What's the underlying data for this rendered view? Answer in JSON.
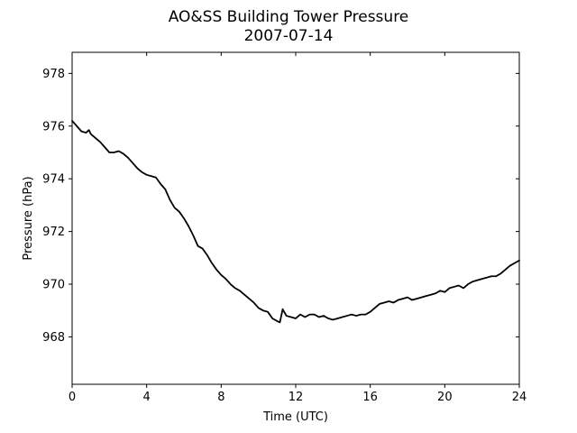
{
  "chart_data": {
    "type": "line",
    "title": "AO&SS Building Tower Pressure",
    "subtitle": "2007-07-14",
    "xlabel": "Time (UTC)",
    "ylabel": "Pressure (hPa)",
    "xlim": [
      0,
      24
    ],
    "ylim": [
      966.2,
      978.8
    ],
    "xticks": [
      0,
      4,
      8,
      12,
      16,
      20,
      24
    ],
    "yticks": [
      968,
      970,
      972,
      974,
      976,
      978
    ],
    "grid": false,
    "line_color": "#000000",
    "series": [
      {
        "x": [
          0,
          0.25,
          0.5,
          0.75,
          0.9,
          1,
          1.25,
          1.5,
          1.75,
          2,
          2.25,
          2.5,
          2.75,
          3,
          3.25,
          3.5,
          3.75,
          4,
          4.25,
          4.5,
          4.75,
          5,
          5.25,
          5.5,
          5.75,
          6,
          6.25,
          6.5,
          6.75,
          7,
          7.25,
          7.5,
          7.75,
          8,
          8.25,
          8.5,
          8.75,
          9,
          9.25,
          9.5,
          9.75,
          10,
          10.25,
          10.5,
          10.75,
          11,
          11.15,
          11.3,
          11.5,
          11.75,
          12,
          12.25,
          12.5,
          12.75,
          13,
          13.25,
          13.5,
          13.75,
          14,
          14.25,
          14.5,
          14.75,
          15,
          15.25,
          15.5,
          15.75,
          16,
          16.25,
          16.5,
          16.75,
          17,
          17.25,
          17.5,
          17.75,
          18,
          18.25,
          18.5,
          18.75,
          19,
          19.25,
          19.5,
          19.75,
          20,
          20.25,
          20.5,
          20.75,
          21,
          21.25,
          21.5,
          21.75,
          22,
          22.25,
          22.5,
          22.75,
          23,
          23.25,
          23.5,
          23.75,
          24
        ],
        "y": [
          976.2,
          976.0,
          975.8,
          975.75,
          975.85,
          975.7,
          975.55,
          975.4,
          975.2,
          975.0,
          975.0,
          975.05,
          974.95,
          974.8,
          974.6,
          974.4,
          974.25,
          974.15,
          974.1,
          974.05,
          973.8,
          973.6,
          973.2,
          972.9,
          972.75,
          972.5,
          972.2,
          971.85,
          971.45,
          971.35,
          971.1,
          970.8,
          970.55,
          970.35,
          970.2,
          970.0,
          969.85,
          969.75,
          969.6,
          969.45,
          969.3,
          969.1,
          969.0,
          968.95,
          968.7,
          968.6,
          968.55,
          969.05,
          968.8,
          968.75,
          968.7,
          968.85,
          968.75,
          968.85,
          968.85,
          968.75,
          968.8,
          968.7,
          968.65,
          968.7,
          968.75,
          968.8,
          968.85,
          968.8,
          968.85,
          968.85,
          968.95,
          969.1,
          969.25,
          969.3,
          969.35,
          969.3,
          969.4,
          969.45,
          969.5,
          969.4,
          969.45,
          969.5,
          969.55,
          969.6,
          969.65,
          969.75,
          969.7,
          969.85,
          969.9,
          969.95,
          969.85,
          970.0,
          970.1,
          970.15,
          970.2,
          970.25,
          970.3,
          970.3,
          970.4,
          970.55,
          970.7,
          970.8,
          970.9
        ]
      }
    ]
  }
}
